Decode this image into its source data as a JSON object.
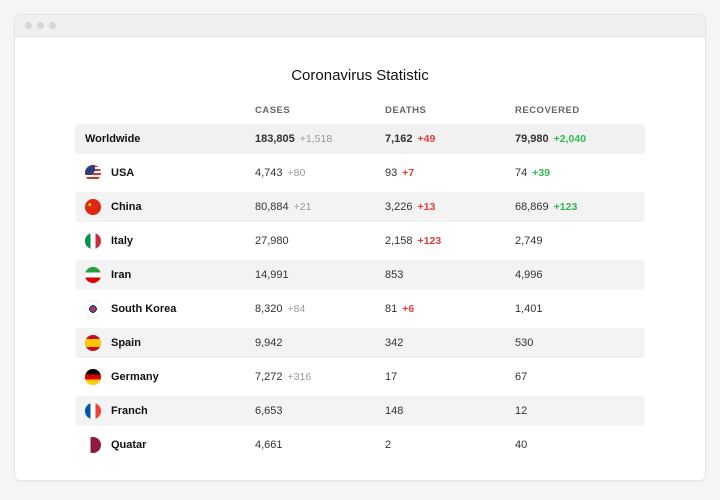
{
  "title": "Coronavirus Statistic",
  "columns": {
    "cases": "CASES",
    "deaths": "DEATHS",
    "recovered": "RECOVERED"
  },
  "colors": {
    "row_stripe_bg": "#f3f3f3",
    "delta_grey": "#9a9a9a",
    "delta_red": "#e23c3c",
    "delta_green": "#2fb84d",
    "text": "#333333",
    "heading": "#666666"
  },
  "worldwide": {
    "label": "Worldwide",
    "cases": "183,805",
    "cases_delta": "+1,518",
    "deaths": "7,162",
    "deaths_delta": "+49",
    "recovered": "79,980",
    "recovered_delta": "+2,040"
  },
  "rows": [
    {
      "name": "USA",
      "flag": "usa",
      "cases": "4,743",
      "cases_delta": "+80",
      "deaths": "93",
      "deaths_delta": "+7",
      "recovered": "74",
      "recovered_delta": "+39"
    },
    {
      "name": "China",
      "flag": "china",
      "cases": "80,884",
      "cases_delta": "+21",
      "deaths": "3,226",
      "deaths_delta": "+13",
      "recovered": "68,869",
      "recovered_delta": "+123"
    },
    {
      "name": "Italy",
      "flag": "italy",
      "cases": "27,980",
      "cases_delta": "",
      "deaths": "2,158",
      "deaths_delta": "+123",
      "recovered": "2,749",
      "recovered_delta": ""
    },
    {
      "name": "Iran",
      "flag": "iran",
      "cases": "14,991",
      "cases_delta": "",
      "deaths": "853",
      "deaths_delta": "",
      "recovered": "4,996",
      "recovered_delta": ""
    },
    {
      "name": "South Korea",
      "flag": "korea",
      "cases": "8,320",
      "cases_delta": "+84",
      "deaths": "81",
      "deaths_delta": "+6",
      "recovered": "1,401",
      "recovered_delta": ""
    },
    {
      "name": "Spain",
      "flag": "spain",
      "cases": "9,942",
      "cases_delta": "",
      "deaths": "342",
      "deaths_delta": "",
      "recovered": "530",
      "recovered_delta": ""
    },
    {
      "name": "Germany",
      "flag": "germany",
      "cases": "7,272",
      "cases_delta": "+316",
      "deaths": "17",
      "deaths_delta": "",
      "recovered": "67",
      "recovered_delta": ""
    },
    {
      "name": "Franch",
      "flag": "france",
      "cases": "6,653",
      "cases_delta": "",
      "deaths": "148",
      "deaths_delta": "",
      "recovered": "12",
      "recovered_delta": ""
    },
    {
      "name": "Quatar",
      "flag": "qatar",
      "cases": "4,661",
      "cases_delta": "",
      "deaths": "2",
      "deaths_delta": "",
      "recovered": "40",
      "recovered_delta": ""
    }
  ],
  "flags": {
    "usa": "radial-gradient(circle at 25% 25%, #2a3d7c 0 35%, transparent 36%), repeating-linear-gradient(#d0352b 0 2px, #fff 2px 4px)",
    "china": "radial-gradient(circle at 30% 35%, #ffde00 0 1.2px, transparent 1.6px), #de2910",
    "italy": "linear-gradient(90deg, #009246 0 33%, #ffffff 33% 66%, #ce2b37 66%)",
    "iran": "linear-gradient(#239f40 0 33%, #ffffff 33% 66%, #da0000 66%)",
    "korea": "radial-gradient(circle at 50% 50%, #cd2e3a 0 24%, #0047a0 24% 34%, transparent 35%), #ffffff",
    "spain": "linear-gradient(#c60b1e 0 25%, #ffc400 25% 75%, #c60b1e 75%)",
    "germany": "linear-gradient(#000000 0 33%, #dd0000 33% 66%, #ffce00 66%)",
    "france": "linear-gradient(90deg, #0055a4 0 33%, #ffffff 33% 66%, #ef4135 66%)",
    "qatar": "linear-gradient(90deg, #ffffff 0 33%, #8d1b3d 33%)"
  }
}
